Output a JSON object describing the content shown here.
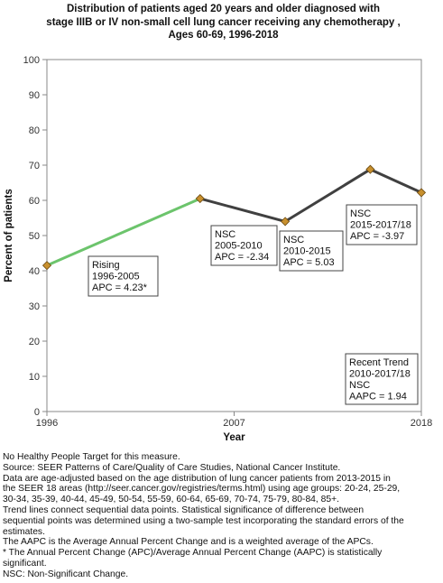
{
  "title_lines": [
    "Distribution of patients aged 20 years and older diagnosed with",
    "stage IIIB or IV non-small cell lung cancer receiving any chemotherapy ,",
    "Ages 60-69,  1996-2018"
  ],
  "chart_data": {
    "type": "line",
    "xlabel": "Year",
    "ylabel": "Percent of patients",
    "xlim": [
      1996,
      2018
    ],
    "ylim": [
      0,
      100
    ],
    "x_ticks": [
      1996,
      2007,
      2018
    ],
    "y_ticks": [
      0,
      10,
      20,
      30,
      40,
      50,
      60,
      70,
      80,
      90,
      100
    ],
    "grid": false,
    "points": [
      {
        "x": 1996,
        "y": 41.5
      },
      {
        "x": 2005,
        "y": 60.5
      },
      {
        "x": 2010,
        "y": 54.0
      },
      {
        "x": 2015,
        "y": 68.8
      },
      {
        "x": 2018,
        "y": 62.2
      }
    ],
    "segments": [
      {
        "from": 1996,
        "to": 2005,
        "color": "#6cc46c"
      },
      {
        "from": 2005,
        "to": 2018,
        "color": "#404040"
      }
    ],
    "annotations": [
      {
        "lines": [
          "Rising",
          "1996-2005",
          "APC =  4.23*"
        ]
      },
      {
        "lines": [
          "NSC",
          "2005-2010",
          "APC = -2.34"
        ]
      },
      {
        "lines": [
          "NSC",
          "2010-2015",
          "APC =  5.03"
        ]
      },
      {
        "lines": [
          "NSC",
          "2015-2017/18",
          "APC = -3.97"
        ]
      },
      {
        "lines": [
          "Recent Trend",
          "2010-2017/18",
          "NSC",
          "AAPC =  1.94"
        ]
      }
    ],
    "marker_color": "#c8902e"
  },
  "notes": [
    "No Healthy People Target for this measure.",
    "Source: SEER Patterns of Care/Quality of Care Studies, National Cancer Institute.",
    "Data are age-adjusted based on the age distribution of lung cancer patients from 2013-2015 in",
    "the SEER 18 areas (http://seer.cancer.gov/registries/terms.html) using age groups: 20-24, 25-29,",
    "30-34, 35-39, 40-44, 45-49, 50-54, 55-59, 60-64, 65-69, 70-74, 75-79, 80-84, 85+.",
    "Trend lines connect sequential data points. Statistical significance of difference between",
    "sequential points was determined using a two-sample test incorporating the standard errors of the",
    "estimates.",
    "The AAPC is the Average Annual Percent Change and is a weighted average of the APCs.",
    "* The Annual Percent Change (APC)/Average Annual Percent Change (AAPC) is statistically",
    "significant.",
    "NSC: Non-Significant Change."
  ]
}
